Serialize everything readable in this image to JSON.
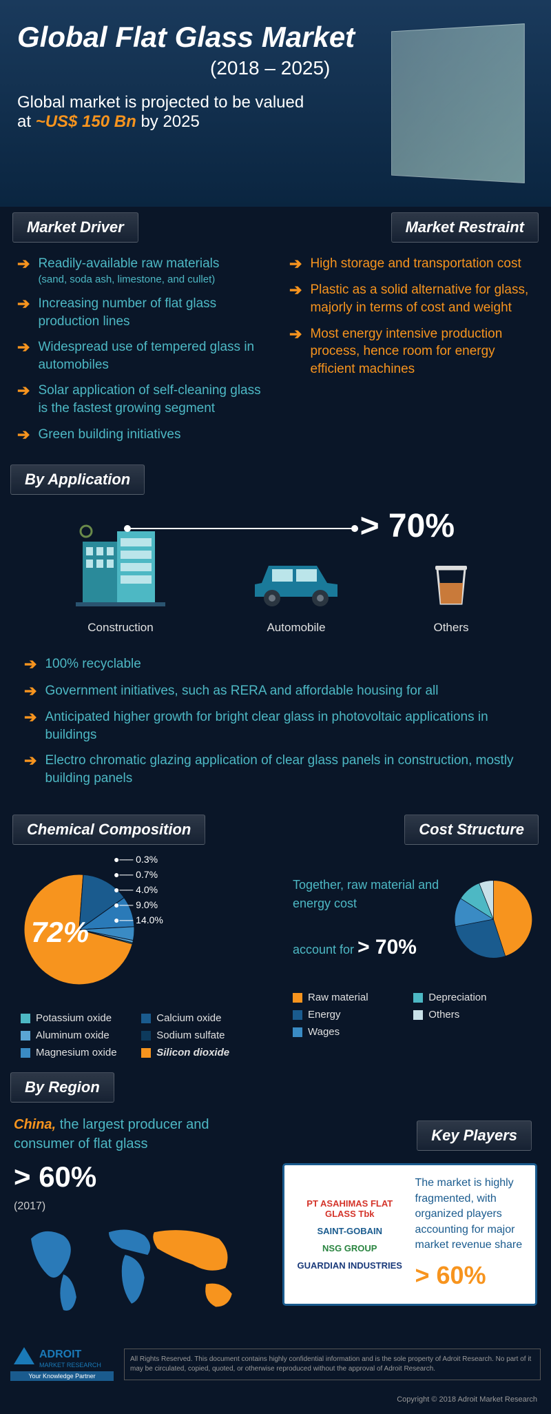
{
  "header": {
    "title": "Global Flat Glass Market",
    "years": "(2018 – 2025)",
    "subtitle_pre": "Global market is projected to be valued",
    "subtitle_at": "at",
    "highlight": "~US$ 150 Bn",
    "by": "by 2025"
  },
  "colors": {
    "orange": "#f7941e",
    "teal": "#4db8c4",
    "blue1": "#1a5b8e",
    "blue2": "#3a8bc4",
    "blue3": "#5aa5d4",
    "ltblue": "#7bc4e8",
    "darkteal": "#2a8a9a",
    "bg": "#0a1628",
    "white": "#ffffff"
  },
  "driver": {
    "title": "Market Driver",
    "items": [
      {
        "text": "Readily-available raw materials",
        "sub": "(sand, soda ash, limestone, and cullet)"
      },
      {
        "text": "Increasing number of flat glass production lines"
      },
      {
        "text": "Widespread use of tempered glass in automobiles"
      },
      {
        "text": "Solar application of self-cleaning glass is the fastest growing segment"
      },
      {
        "text": "Green building initiatives"
      }
    ]
  },
  "restraint": {
    "title": "Market Restraint",
    "items": [
      {
        "text": "High storage and transportation cost"
      },
      {
        "text": "Plastic as a solid alternative for glass, majorly in terms of cost and weight"
      },
      {
        "text": "Most energy intensive production process, hence room for energy efficient machines"
      }
    ]
  },
  "application": {
    "title": "By Application",
    "pct": "> 70%",
    "icons": [
      {
        "label": "Construction"
      },
      {
        "label": "Automobile"
      },
      {
        "label": "Others"
      }
    ],
    "bullets": [
      "100% recyclable",
      "Government initiatives, such as RERA and affordable housing for all",
      "Anticipated higher growth for bright clear glass in photovoltaic applications in buildings",
      "Electro chromatic glazing application of clear glass panels in construction, mostly building panels"
    ]
  },
  "chemical": {
    "title": "Chemical Composition",
    "big": "72%",
    "slices": [
      {
        "label": "Silicon dioxide",
        "value": 72,
        "color": "#f7941e"
      },
      {
        "label": "Sodium sulfate",
        "value": 14,
        "color": "#1a5b8e"
      },
      {
        "label": "Calcium oxide",
        "value": 9,
        "color": "#2a7ab8"
      },
      {
        "label": "Magnesium oxide",
        "value": 4,
        "color": "#3a8bc4"
      },
      {
        "label": "Aluminum oxide",
        "value": 0.7,
        "color": "#5aa5d4"
      },
      {
        "label": "Potassium oxide",
        "value": 0.3,
        "color": "#4db8c4"
      }
    ],
    "leaders": [
      "0.3%",
      "0.7%",
      "4.0%",
      "9.0%",
      "14.0%"
    ],
    "legend": [
      {
        "swatch": "#4db8c4",
        "label": "Potassium oxide"
      },
      {
        "swatch": "#1a5b8e",
        "label": "Calcium oxide"
      },
      {
        "swatch": "#5aa5d4",
        "label": "Aluminum oxide"
      },
      {
        "swatch": "#0d3a5c",
        "label": "Sodium sulfate"
      },
      {
        "swatch": "#3a8bc4",
        "label": "Magnesium oxide"
      },
      {
        "swatch": "#f7941e",
        "label": "Silicon dioxide",
        "bold": true
      }
    ]
  },
  "cost": {
    "title": "Cost Structure",
    "text_pre": "Together, raw material and energy cost",
    "text_mid": "account for",
    "pct": "> 70%",
    "slices": [
      {
        "label": "Raw material",
        "value": 45,
        "color": "#f7941e"
      },
      {
        "label": "Energy",
        "value": 27,
        "color": "#1a5b8e"
      },
      {
        "label": "Wages",
        "value": 12,
        "color": "#3a8bc4"
      },
      {
        "label": "Depreciation",
        "value": 10,
        "color": "#4db8c4"
      },
      {
        "label": "Others",
        "value": 6,
        "color": "#c8e0e8"
      }
    ],
    "legend": [
      {
        "swatch": "#f7941e",
        "label": "Raw material"
      },
      {
        "swatch": "#4db8c4",
        "label": "Depreciation"
      },
      {
        "swatch": "#1a5b8e",
        "label": "Energy"
      },
      {
        "swatch": "#c8e0e8",
        "label": "Others"
      },
      {
        "swatch": "#3a8bc4",
        "label": "Wages"
      }
    ]
  },
  "region": {
    "title": "By Region",
    "china_hi": "China,",
    "china_rest": "the largest producer and consumer of flat glass",
    "pct": "> 60%",
    "year": "(2017)"
  },
  "keyplayers": {
    "title": "Key Players",
    "logos": [
      "PT ASAHIMAS FLAT GLASS Tbk",
      "SAINT-GOBAIN",
      "NSG GROUP",
      "GUARDIAN INDUSTRIES"
    ],
    "text": "The market is highly fragmented, with organized players accounting for major market revenue share",
    "pct": "> 60%"
  },
  "footer": {
    "brand": "ADROIT",
    "brand2": "MARKET RESEARCH",
    "tag": "Your Knowledge Partner",
    "legal": "All Rights Reserved. This document contains highly confidential information and is the sole property of Adroit Research. No part of it may be circulated, copied, quoted, or otherwise reproduced without the approval of Adroit Research.",
    "copyright": "Copyright © 2018 Adroit Market Research"
  }
}
